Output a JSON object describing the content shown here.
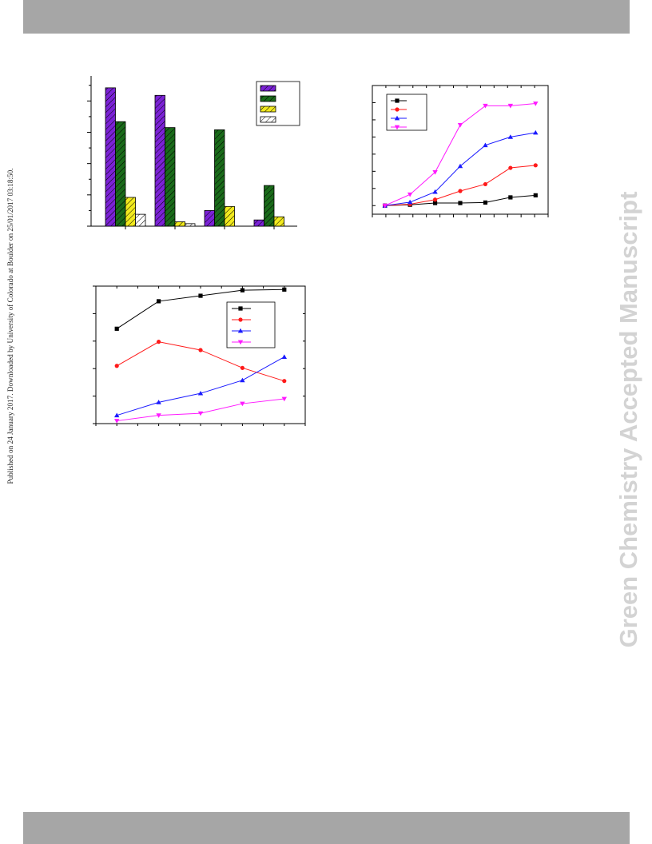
{
  "header": {},
  "side_note": "Published on 24 January 2017. Downloaded by University of Colorado at Boulder on 25/01/2017 03:18:50.",
  "watermark": "Green Chemistry Accepted Manuscript",
  "colors": {
    "band": "#a6a6a6",
    "purple": "#7b22d6",
    "green": "#1a6b1a",
    "yellow": "#f2ea1e",
    "white": "#ffffff",
    "black": "#000000",
    "red": "#ff1a1a",
    "blue": "#1a1aff",
    "magenta": "#ff1aff"
  },
  "chart_data": [
    {
      "type": "bar",
      "title": "",
      "xlabel": "",
      "ylabel": "",
      "ylim": [
        0,
        4.8
      ],
      "categories": [
        "",
        "",
        "",
        ""
      ],
      "series": [
        {
          "values": [
            4.42,
            4.18,
            0.5,
            0.2
          ],
          "color": "#7b22d6",
          "pattern": "hatch"
        },
        {
          "values": [
            3.34,
            3.15,
            3.08,
            1.3
          ],
          "color": "#1a6b1a",
          "pattern": "hatch"
        },
        {
          "values": [
            0.92,
            0.14,
            0.63,
            0.3
          ],
          "color": "#f2ea1e",
          "pattern": "hatch"
        },
        {
          "values": [
            0.38,
            0.08,
            0.0,
            0.0
          ],
          "color": "#ffffff",
          "pattern": "hatch"
        }
      ],
      "legend": "top-right"
    },
    {
      "type": "line",
      "title": "",
      "xlabel": "",
      "ylabel": "",
      "x": [
        0,
        1,
        2,
        3,
        4,
        5,
        6
      ],
      "xlim": [
        -0.5,
        6.5
      ],
      "ylim": [
        -0.5,
        7
      ],
      "series": [
        {
          "values": [
            0,
            0.05,
            0.15,
            0.15,
            0.18,
            0.48,
            0.6
          ],
          "color": "#000000",
          "marker": "square"
        },
        {
          "values": [
            0,
            0.08,
            0.35,
            0.85,
            1.25,
            2.2,
            2.35
          ],
          "color": "#ff1a1a",
          "marker": "circle"
        },
        {
          "values": [
            0,
            0.2,
            0.8,
            2.3,
            3.52,
            4.0,
            4.25
          ],
          "color": "#1a1aff",
          "marker": "triangle-up"
        },
        {
          "values": [
            0,
            0.65,
            1.95,
            4.7,
            5.82,
            5.82,
            5.95
          ],
          "color": "#ff1aff",
          "marker": "triangle-down"
        }
      ],
      "legend": "top-left"
    },
    {
      "type": "line",
      "title": "",
      "xlabel": "",
      "ylabel": "",
      "x": [
        1,
        2,
        3,
        4,
        5
      ],
      "xlim": [
        0.5,
        5.5
      ],
      "ylim": [
        0,
        10
      ],
      "series": [
        {
          "values": [
            6.9,
            8.9,
            9.3,
            9.7,
            9.75
          ],
          "color": "#000000",
          "marker": "square"
        },
        {
          "values": [
            4.2,
            5.95,
            5.35,
            4.05,
            3.1
          ],
          "color": "#ff1a1a",
          "marker": "circle"
        },
        {
          "values": [
            0.6,
            1.55,
            2.2,
            3.15,
            4.85
          ],
          "color": "#1a1aff",
          "marker": "triangle-up"
        },
        {
          "values": [
            0.2,
            0.6,
            0.75,
            1.45,
            1.8
          ],
          "color": "#ff1aff",
          "marker": "triangle-down"
        }
      ],
      "legend": "top-right"
    }
  ]
}
